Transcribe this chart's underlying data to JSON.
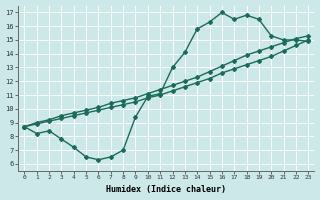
{
  "xlabel": "Humidex (Indice chaleur)",
  "xlim": [
    -0.5,
    23.5
  ],
  "ylim": [
    5.5,
    17.5
  ],
  "xticks": [
    0,
    1,
    2,
    3,
    4,
    5,
    6,
    7,
    8,
    9,
    10,
    11,
    12,
    13,
    14,
    15,
    16,
    17,
    18,
    19,
    20,
    21,
    22,
    23
  ],
  "yticks": [
    6,
    7,
    8,
    9,
    10,
    11,
    12,
    13,
    14,
    15,
    16,
    17
  ],
  "bg_color": "#cce8e8",
  "grid_color": "#ffffff",
  "line_color": "#1a6b5a",
  "curve1_x": [
    0,
    1,
    2,
    3,
    4,
    5,
    6,
    7,
    8,
    9,
    10,
    11,
    12,
    13,
    14,
    15,
    16,
    17,
    18,
    19,
    20,
    21,
    22,
    23
  ],
  "curve1_y": [
    8.7,
    8.2,
    8.4,
    7.8,
    7.2,
    6.5,
    6.3,
    6.5,
    7.0,
    9.4,
    10.9,
    11.1,
    13.0,
    14.1,
    15.8,
    16.3,
    17.0,
    16.5,
    16.8,
    16.5,
    15.3,
    15.0,
    15.0,
    14.9
  ],
  "curve2_x": [
    0,
    1,
    2,
    3,
    4,
    5,
    6,
    7,
    8,
    9,
    10,
    11,
    12,
    13,
    14,
    15,
    16,
    17,
    18,
    19,
    20,
    21,
    22,
    23
  ],
  "curve2_y": [
    8.7,
    8.9,
    9.1,
    9.3,
    9.5,
    9.7,
    9.9,
    10.1,
    10.3,
    10.5,
    10.8,
    11.0,
    11.3,
    11.6,
    11.9,
    12.2,
    12.6,
    12.9,
    13.2,
    13.5,
    13.8,
    14.2,
    14.6,
    15.0
  ],
  "curve3_x": [
    0,
    1,
    2,
    3,
    4,
    5,
    6,
    7,
    8,
    9,
    10,
    11,
    12,
    13,
    14,
    15,
    16,
    17,
    18,
    19,
    20,
    21,
    22,
    23
  ],
  "curve3_y": [
    8.7,
    9.0,
    9.2,
    9.5,
    9.7,
    9.9,
    10.1,
    10.4,
    10.6,
    10.8,
    11.1,
    11.4,
    11.7,
    12.0,
    12.3,
    12.7,
    13.1,
    13.5,
    13.9,
    14.2,
    14.5,
    14.8,
    15.1,
    15.3
  ],
  "marker": "D",
  "markersize": 2.0,
  "linewidth": 1.0
}
